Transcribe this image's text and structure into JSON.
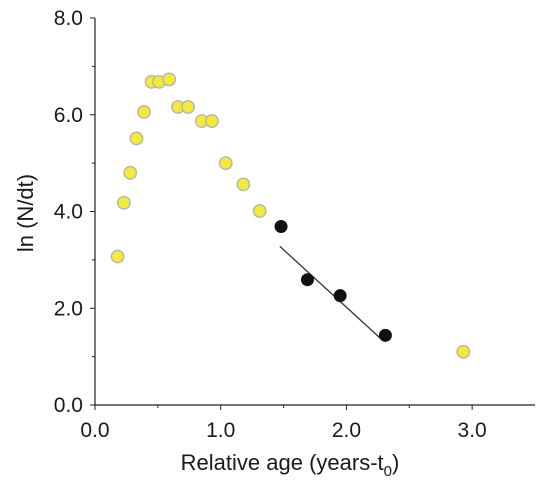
{
  "chart_data": {
    "type": "scatter",
    "xlabel": "Relative age (years-t",
    "xlabel_subscript": "0",
    "xlabel_close": ")",
    "ylabel": "ln (N/dt)",
    "xlim": [
      0.0,
      3.5
    ],
    "ylim": [
      0.0,
      8.0
    ],
    "x_ticks": [
      "0.0",
      "1.0",
      "2.0",
      "3.0"
    ],
    "y_ticks": [
      "0.0",
      "2.0",
      "4.0",
      "6.0",
      "8.0"
    ],
    "grid": false,
    "series": [
      {
        "color": "#f2ea3c",
        "edge": "#b5b5a8",
        "points": [
          {
            "x": 0.18,
            "y": 3.07
          },
          {
            "x": 0.23,
            "y": 4.18
          },
          {
            "x": 0.28,
            "y": 4.8
          },
          {
            "x": 0.33,
            "y": 5.51
          },
          {
            "x": 0.39,
            "y": 6.06
          },
          {
            "x": 0.45,
            "y": 6.68
          },
          {
            "x": 0.51,
            "y": 6.68
          },
          {
            "x": 0.59,
            "y": 6.73
          },
          {
            "x": 0.66,
            "y": 6.16
          },
          {
            "x": 0.74,
            "y": 6.16
          },
          {
            "x": 0.85,
            "y": 5.87
          },
          {
            "x": 0.93,
            "y": 5.87
          },
          {
            "x": 1.04,
            "y": 5.0
          },
          {
            "x": 1.18,
            "y": 4.56
          },
          {
            "x": 1.31,
            "y": 4.01
          },
          {
            "x": 2.93,
            "y": 1.1
          }
        ]
      },
      {
        "color": "#111111",
        "edge": "#111111",
        "points": [
          {
            "x": 1.48,
            "y": 3.69
          },
          {
            "x": 1.69,
            "y": 2.59
          },
          {
            "x": 1.95,
            "y": 2.26
          },
          {
            "x": 2.31,
            "y": 1.44
          }
        ]
      }
    ],
    "fit_line": {
      "x": [
        1.47,
        2.27
      ],
      "y": [
        3.28,
        1.38
      ],
      "color": "#333333"
    }
  }
}
